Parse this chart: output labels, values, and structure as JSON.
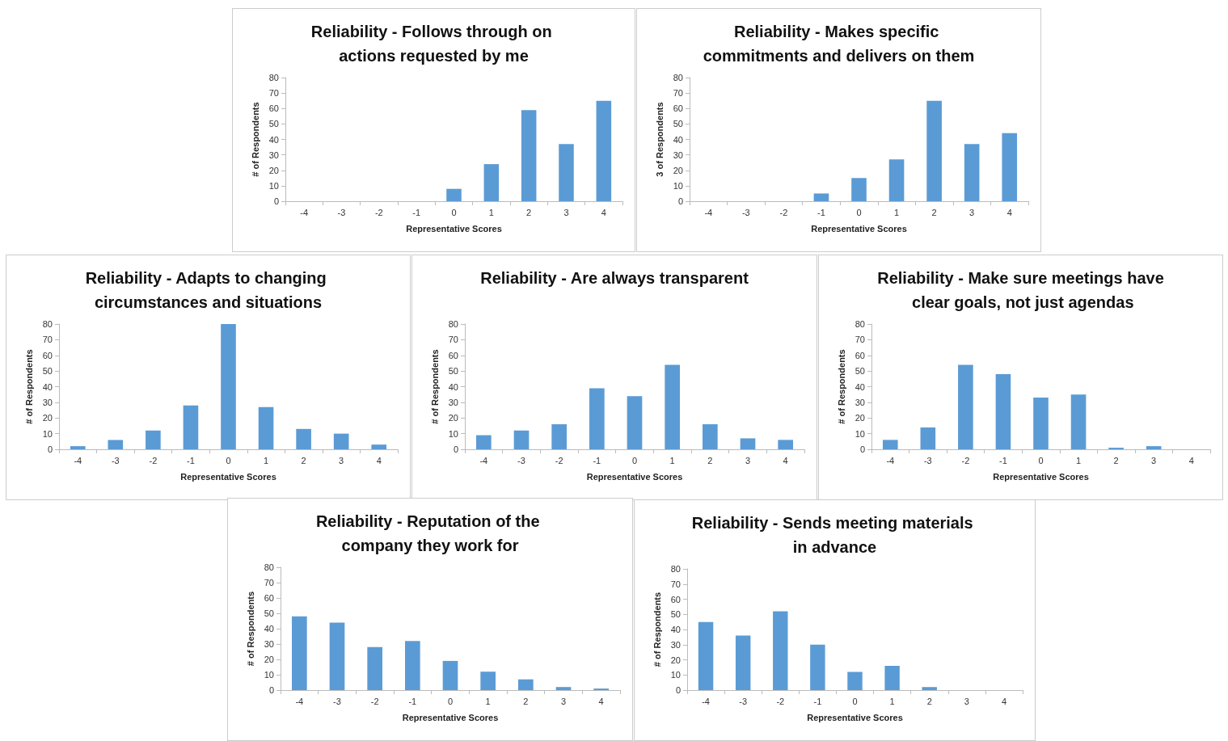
{
  "chart_data": [
    {
      "type": "bar",
      "title": "Reliability - Follows through on actions requested by me",
      "xlabel": "Representative Scores",
      "ylabel": "# of Respondents",
      "categories": [
        "-4",
        "-3",
        "-2",
        "-1",
        "0",
        "1",
        "2",
        "3",
        "4"
      ],
      "values": [
        0,
        0,
        0,
        0,
        8,
        24,
        59,
        37,
        65
      ],
      "color": "#5b9bd5",
      "ylim": [
        0,
        80
      ],
      "yticks": [
        0,
        10,
        20,
        30,
        40,
        50,
        60,
        70,
        80
      ]
    },
    {
      "type": "bar",
      "title": "Reliability - Makes specific commitments and delivers on them",
      "xlabel": "Representative Scores",
      "ylabel": "3 of Respondents",
      "categories": [
        "-4",
        "-3",
        "-2",
        "-1",
        "0",
        "1",
        "2",
        "3",
        "4"
      ],
      "values": [
        0,
        0,
        0,
        5,
        15,
        27,
        65,
        37,
        44
      ],
      "color": "#5b9bd5",
      "ylim": [
        0,
        80
      ],
      "yticks": [
        0,
        10,
        20,
        30,
        40,
        50,
        60,
        70,
        80
      ]
    },
    {
      "type": "bar",
      "title": "Reliability - Adapts to changing circumstances and situations",
      "xlabel": "Representative Scores",
      "ylabel": "# of Respondents",
      "categories": [
        "-4",
        "-3",
        "-2",
        "-1",
        "0",
        "1",
        "2",
        "3",
        "4"
      ],
      "values": [
        2,
        6,
        12,
        28,
        80,
        27,
        13,
        10,
        3
      ],
      "color": "#5b9bd5",
      "ylim": [
        0,
        80
      ],
      "yticks": [
        0,
        10,
        20,
        30,
        40,
        50,
        60,
        70,
        80
      ]
    },
    {
      "type": "bar",
      "title": "Reliability - Are always transparent",
      "xlabel": "Representative Scores",
      "ylabel": "# of Respondents",
      "categories": [
        "-4",
        "-3",
        "-2",
        "-1",
        "0",
        "1",
        "2",
        "3",
        "4"
      ],
      "values": [
        9,
        12,
        16,
        39,
        34,
        54,
        16,
        7,
        6
      ],
      "color": "#5b9bd5",
      "ylim": [
        0,
        80
      ],
      "yticks": [
        0,
        10,
        20,
        30,
        40,
        50,
        60,
        70,
        80
      ]
    },
    {
      "type": "bar",
      "title": "Reliability - Make sure meetings have clear goals, not just agendas",
      "xlabel": "Representative Scores",
      "ylabel": "# of Respondents",
      "categories": [
        "-4",
        "-3",
        "-2",
        "-1",
        "0",
        "1",
        "2",
        "3",
        "4"
      ],
      "values": [
        6,
        14,
        54,
        48,
        33,
        35,
        1,
        2,
        0
      ],
      "color": "#5b9bd5",
      "ylim": [
        0,
        80
      ],
      "yticks": [
        0,
        10,
        20,
        30,
        40,
        50,
        60,
        70,
        80
      ]
    },
    {
      "type": "bar",
      "title": "Reliability - Reputation of the company they work for",
      "xlabel": "Representative Scores",
      "ylabel": "# of Respondents",
      "categories": [
        "-4",
        "-3",
        "-2",
        "-1",
        "0",
        "1",
        "2",
        "3",
        "4"
      ],
      "values": [
        48,
        44,
        28,
        32,
        19,
        12,
        7,
        2,
        1
      ],
      "color": "#5b9bd5",
      "ylim": [
        0,
        80
      ],
      "yticks": [
        0,
        10,
        20,
        30,
        40,
        50,
        60,
        70,
        80
      ]
    },
    {
      "type": "bar",
      "title": "Reliability - Sends meeting materials in advance",
      "xlabel": "Representative Scores",
      "ylabel": "# of Respondents",
      "categories": [
        "-4",
        "-3",
        "-2",
        "-1",
        "0",
        "1",
        "2",
        "3",
        "4"
      ],
      "values": [
        45,
        36,
        52,
        30,
        12,
        16,
        2,
        0,
        0
      ],
      "color": "#5b9bd5",
      "ylim": [
        0,
        80
      ],
      "yticks": [
        0,
        10,
        20,
        30,
        40,
        50,
        60,
        70,
        80
      ]
    }
  ]
}
